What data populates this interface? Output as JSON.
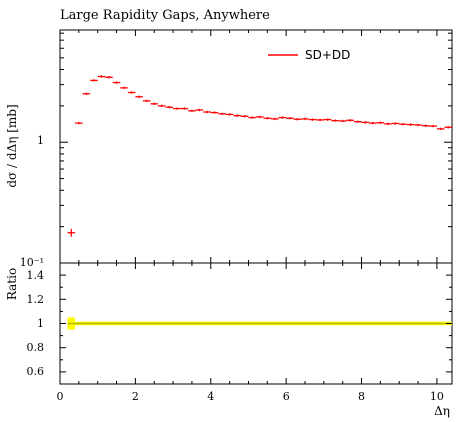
{
  "chart_data": {
    "type": "line",
    "title": "Large Rapidity Gaps, Anywhere",
    "xlabel": "Δη",
    "ylabel": "dσ / dΔη [mb]",
    "ratio_ylabel": "Ratio",
    "xlim": [
      0,
      10.4
    ],
    "ylim": [
      0.1,
      8.5
    ],
    "ylog": true,
    "ratio_ylim": [
      0.5,
      1.5
    ],
    "x_ticks": [
      "0",
      "2",
      "4",
      "6",
      "8",
      "10"
    ],
    "y_ticks": [
      "1",
      "10⁻¹"
    ],
    "ratio_ticks": [
      "1.4",
      "1.2",
      "1",
      "0.8",
      "0.6"
    ],
    "legend_position": "top-right",
    "series": [
      {
        "name": "SD+DD",
        "color": "#ff0000",
        "bin_width": 0.2,
        "x": [
          0.3,
          0.5,
          0.7,
          0.9,
          1.1,
          1.3,
          1.5,
          1.7,
          1.9,
          2.1,
          2.3,
          2.5,
          2.7,
          2.9,
          3.1,
          3.3,
          3.5,
          3.7,
          3.9,
          4.1,
          4.3,
          4.5,
          4.7,
          4.9,
          5.1,
          5.3,
          5.5,
          5.7,
          5.9,
          6.1,
          6.3,
          6.5,
          6.7,
          6.9,
          7.1,
          7.3,
          7.5,
          7.7,
          7.9,
          8.1,
          8.3,
          8.5,
          8.7,
          8.9,
          9.1,
          9.3,
          9.5,
          9.7,
          9.9,
          10.1,
          10.3
        ],
        "y": [
          0.178,
          1.44,
          2.52,
          3.25,
          3.5,
          3.45,
          3.12,
          2.82,
          2.58,
          2.38,
          2.2,
          2.08,
          2.0,
          1.95,
          1.9,
          1.9,
          1.82,
          1.85,
          1.78,
          1.76,
          1.72,
          1.7,
          1.66,
          1.64,
          1.6,
          1.62,
          1.58,
          1.56,
          1.6,
          1.58,
          1.55,
          1.56,
          1.54,
          1.53,
          1.54,
          1.51,
          1.5,
          1.52,
          1.48,
          1.46,
          1.44,
          1.45,
          1.42,
          1.43,
          1.41,
          1.4,
          1.39,
          1.37,
          1.36,
          1.29,
          1.33
        ]
      }
    ],
    "ratio_band_color": "#ffff00",
    "ratio_line_color": "#b3b300"
  }
}
